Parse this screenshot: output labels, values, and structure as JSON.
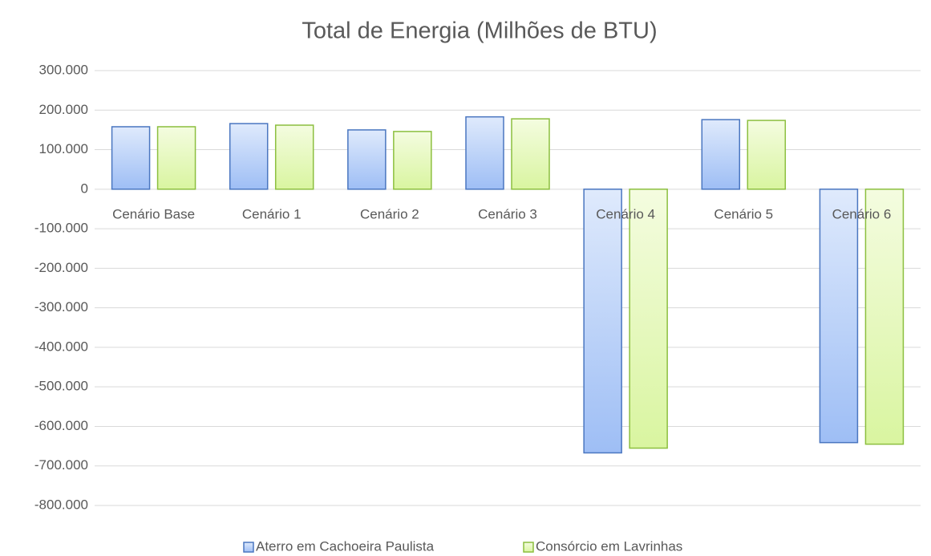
{
  "chart_data": {
    "type": "bar",
    "title": "Total de Energia (Milhões de BTU)",
    "categories": [
      "Cenário Base",
      "Cenário 1",
      "Cenário 2",
      "Cenário 3",
      "Cenário 4",
      "Cenário 5",
      "Cenário 6"
    ],
    "series": [
      {
        "name": "Aterro em Cachoeira Paulista",
        "color": "#4a76c0",
        "values": [
          158000,
          166000,
          150000,
          183000,
          -667000,
          176000,
          -641000
        ]
      },
      {
        "name": "Consórcio em Lavrinhas",
        "color": "#8cbf3f",
        "values": [
          158000,
          162000,
          146000,
          178000,
          -655000,
          174000,
          -645000
        ]
      }
    ],
    "ylim": [
      -800000,
      300000
    ],
    "yticks": [
      {
        "value": 300000,
        "label": "300.000"
      },
      {
        "value": 200000,
        "label": "200.000"
      },
      {
        "value": 100000,
        "label": "100.000"
      },
      0,
      {
        "value": -100000,
        "label": "-100.000"
      },
      {
        "value": -200000,
        "label": "-200.000"
      },
      {
        "value": -300000,
        "label": "-300.000"
      },
      {
        "value": -400000,
        "label": "-400.000"
      },
      {
        "value": -500000,
        "label": "-500.000"
      },
      {
        "value": -600000,
        "label": "-600.000"
      },
      {
        "value": -700000,
        "label": "-700.000"
      },
      {
        "value": -800000,
        "label": "-800.000"
      }
    ],
    "grid": true,
    "legend": "bottom"
  }
}
